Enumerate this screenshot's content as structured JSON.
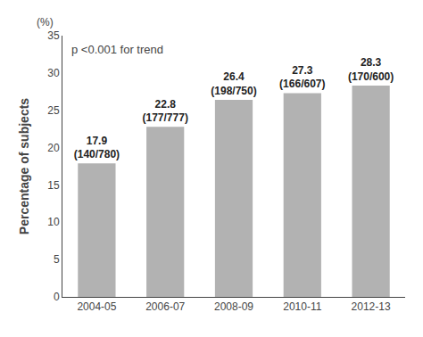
{
  "chart_data": {
    "type": "bar",
    "categories": [
      "2004-05",
      "2006-07",
      "2008-09",
      "2010-11",
      "2012-13"
    ],
    "values": [
      17.9,
      22.8,
      26.4,
      27.3,
      28.3
    ],
    "value_labels": [
      "17.9\n(140/780)",
      "22.8\n(177/777)",
      "26.4\n(198/750)",
      "27.3\n(166/607)",
      "28.3\n(170/600)"
    ],
    "data_labels": true,
    "color": "#b2b2b2",
    "ylabel": "Percentage of subjects",
    "annotations": [
      "p <0.001 for trend",
      "(%)"
    ],
    "ylim": [
      0,
      35
    ],
    "yticks": [
      0,
      5,
      10,
      15,
      20,
      25,
      30,
      35
    ],
    "grid": false
  }
}
